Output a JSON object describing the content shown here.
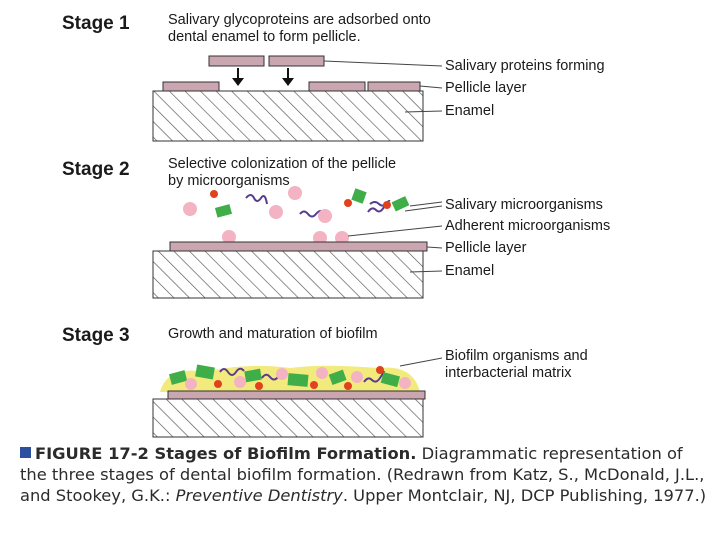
{
  "stages": [
    {
      "title": "Stage 1",
      "description_lines": [
        "Salivary glycoproteins are adsorbed onto",
        "dental enamel to form pellicle."
      ],
      "labels": [
        "Salivary proteins forming",
        "Pellicle layer",
        "Enamel"
      ]
    },
    {
      "title": "Stage 2",
      "description_lines": [
        "Selective colonization of the pellicle",
        "by microorganisms"
      ],
      "labels": [
        "Salivary microorganisms",
        "Adherent microorganisms",
        "Pellicle layer",
        "Enamel"
      ]
    },
    {
      "title": "Stage 3",
      "description_lines": [
        "Growth and maturation of biofilm"
      ],
      "labels": [
        "Biofilm organisms and",
        "interbacterial matrix"
      ]
    }
  ],
  "caption": {
    "figure_label": "FIGURE 17-2 Stages of Biofilm Formation.",
    "text_before_italic": "Diagrammatic representation of the three stages of dental biofilm formation. (Redrawn from Katz, S., McDonald, J.L., and Stookey, G.K.: ",
    "italic": "Preventive Dentistry",
    "text_after_italic": ". Upper Montclair, NJ, DCP Publishing, 1977.)"
  },
  "colors": {
    "protein_block": "#c9a6b0",
    "pellicle": "#b98a98",
    "enamel_hatch": "#555555",
    "bacteria_pink": "#f4b3c2",
    "bacteria_red": "#e2411d",
    "bacteria_green": "#3fae49",
    "bacteria_purple": "#5a3c8c",
    "matrix_yellow": "#f2ea7d",
    "caption_accent": "#2d4fa0"
  }
}
